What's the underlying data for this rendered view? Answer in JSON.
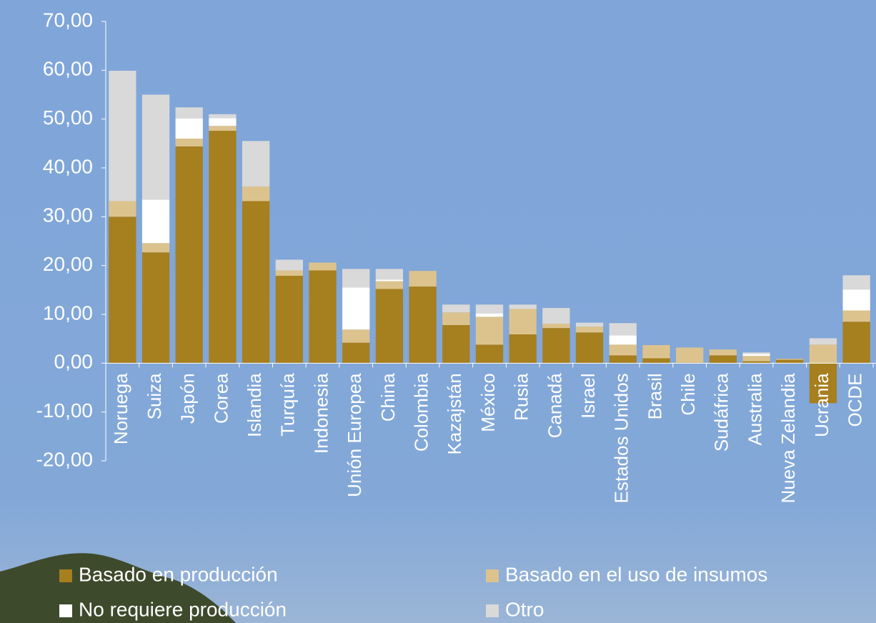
{
  "chart_data": {
    "type": "bar",
    "stacked": true,
    "categories": [
      "Noruega",
      "Suiza",
      "Japón",
      "Corea",
      "Islandia",
      "Turquía",
      "Indonesia",
      "Unión Europea",
      "China",
      "Colombia",
      "Kazajstán",
      "México",
      "Rusia",
      "Canadá",
      "Israel",
      "Estados Unidos",
      "Brasil",
      "Chile",
      "Sudáfrica",
      "Australia",
      "Nueva Zelandia",
      "Ucrania",
      "OCDE"
    ],
    "series": [
      {
        "name": "Basado en producción",
        "color": "#a67f1e",
        "values": [
          30.0,
          22.7,
          44.4,
          47.6,
          33.2,
          17.9,
          19.0,
          4.2,
          15.2,
          15.7,
          7.8,
          3.8,
          5.9,
          7.2,
          6.3,
          1.6,
          1.0,
          0.1,
          1.6,
          0.4,
          0.7,
          -8.2,
          8.5
        ]
      },
      {
        "name": "Basado en el uso de insumos",
        "color": "#dcc38e",
        "values": [
          3.2,
          1.9,
          1.6,
          1.0,
          3.0,
          1.1,
          1.6,
          2.7,
          1.6,
          3.2,
          2.6,
          5.7,
          5.2,
          0.9,
          1.2,
          2.2,
          2.7,
          3.1,
          1.2,
          1.1,
          0.2,
          3.8,
          2.3
        ]
      },
      {
        "name": "No requiere producción",
        "color": "#ffffff",
        "values": [
          0,
          8.9,
          4.1,
          1.6,
          0,
          0,
          0,
          8.6,
          0.3,
          0,
          0,
          0.7,
          0,
          0,
          0,
          1.9,
          0,
          0,
          0,
          0.4,
          0,
          0,
          4.3
        ]
      },
      {
        "name": "Otro",
        "color": "#d9d9d9",
        "values": [
          26.7,
          21.5,
          2.3,
          0.8,
          9.3,
          2.2,
          0,
          3.8,
          2.2,
          0,
          1.6,
          1.8,
          0.9,
          3.2,
          0.8,
          2.5,
          0,
          0,
          0,
          0.3,
          0,
          1.3,
          2.9
        ]
      }
    ],
    "ylim": [
      -20,
      70
    ],
    "yticks": [
      {
        "value": -20,
        "label": "-20,00"
      },
      {
        "value": -10,
        "label": "-10,00"
      },
      {
        "value": 0,
        "label": "0,00"
      },
      {
        "value": 10,
        "label": "10,00"
      },
      {
        "value": 20,
        "label": "20,00"
      },
      {
        "value": 30,
        "label": "30,00"
      },
      {
        "value": 40,
        "label": "40,00"
      },
      {
        "value": 50,
        "label": "50,00"
      },
      {
        "value": 60,
        "label": "60,00"
      },
      {
        "value": 70,
        "label": "70,00"
      }
    ],
    "legend": "bottom"
  }
}
